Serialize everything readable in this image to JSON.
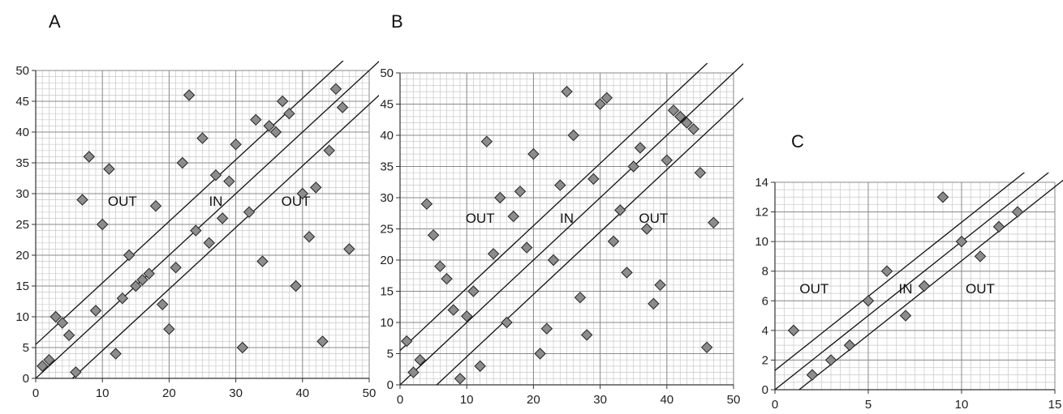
{
  "chart_data": [
    {
      "type": "scatter",
      "panel_label": "A",
      "xlim": [
        0,
        50
      ],
      "ylim": [
        0,
        50
      ],
      "x_ticks": [
        0,
        10,
        20,
        30,
        40,
        50
      ],
      "y_ticks": [
        0,
        5,
        10,
        15,
        20,
        25,
        30,
        35,
        40,
        45,
        50
      ],
      "grid": true,
      "marker": "diamond",
      "marker_color": "#8c8c8c",
      "region_labels": [
        {
          "text": "OUT",
          "x": 13,
          "y": 28
        },
        {
          "text": "IN",
          "x": 27,
          "y": 28
        },
        {
          "text": "OUT",
          "x": 39,
          "y": 28
        }
      ],
      "lines": [
        {
          "intercept": 5.5,
          "slope": 1.0
        },
        {
          "intercept": 0,
          "slope": 1.0
        },
        {
          "intercept": -5.5,
          "slope": 1.0
        }
      ],
      "points": [
        [
          1,
          2
        ],
        [
          2,
          3
        ],
        [
          3,
          10
        ],
        [
          4,
          9
        ],
        [
          5,
          7
        ],
        [
          6,
          1
        ],
        [
          7,
          29
        ],
        [
          8,
          36
        ],
        [
          9,
          11
        ],
        [
          10,
          25
        ],
        [
          11,
          34
        ],
        [
          12,
          4
        ],
        [
          13,
          13
        ],
        [
          14,
          20
        ],
        [
          15,
          15
        ],
        [
          16,
          16
        ],
        [
          17,
          17
        ],
        [
          18,
          28
        ],
        [
          19,
          12
        ],
        [
          20,
          8
        ],
        [
          21,
          18
        ],
        [
          22,
          35
        ],
        [
          23,
          46
        ],
        [
          24,
          24
        ],
        [
          25,
          39
        ],
        [
          26,
          22
        ],
        [
          27,
          33
        ],
        [
          28,
          26
        ],
        [
          29,
          32
        ],
        [
          30,
          38
        ],
        [
          31,
          5
        ],
        [
          32,
          27
        ],
        [
          33,
          42
        ],
        [
          34,
          19
        ],
        [
          35,
          41
        ],
        [
          36,
          40
        ],
        [
          37,
          45
        ],
        [
          38,
          43
        ],
        [
          39,
          15
        ],
        [
          40,
          30
        ],
        [
          41,
          23
        ],
        [
          42,
          31
        ],
        [
          43,
          6
        ],
        [
          44,
          37
        ],
        [
          45,
          47
        ],
        [
          46,
          44
        ],
        [
          47,
          21
        ]
      ]
    },
    {
      "type": "scatter",
      "panel_label": "B",
      "xlim": [
        0,
        50
      ],
      "ylim": [
        0,
        50
      ],
      "x_ticks": [
        0,
        10,
        20,
        30,
        40,
        50
      ],
      "y_ticks": [
        0,
        5,
        10,
        15,
        20,
        25,
        30,
        35,
        40,
        45,
        50
      ],
      "grid": true,
      "marker": "diamond",
      "marker_color": "#8c8c8c",
      "region_labels": [
        {
          "text": "OUT",
          "x": 12,
          "y": 26
        },
        {
          "text": "IN",
          "x": 25,
          "y": 26
        },
        {
          "text": "OUT",
          "x": 38,
          "y": 26
        }
      ],
      "lines": [
        {
          "intercept": 5.5,
          "slope": 1.0
        },
        {
          "intercept": 0,
          "slope": 1.0
        },
        {
          "intercept": -5.5,
          "slope": 1.0
        }
      ],
      "points": [
        [
          1,
          7
        ],
        [
          2,
          2
        ],
        [
          3,
          4
        ],
        [
          4,
          29
        ],
        [
          5,
          24
        ],
        [
          6,
          19
        ],
        [
          7,
          17
        ],
        [
          8,
          12
        ],
        [
          9,
          1
        ],
        [
          10,
          11
        ],
        [
          11,
          15
        ],
        [
          12,
          3
        ],
        [
          13,
          39
        ],
        [
          14,
          21
        ],
        [
          15,
          30
        ],
        [
          16,
          10
        ],
        [
          17,
          27
        ],
        [
          18,
          31
        ],
        [
          19,
          22
        ],
        [
          20,
          37
        ],
        [
          21,
          5
        ],
        [
          22,
          9
        ],
        [
          23,
          20
        ],
        [
          24,
          32
        ],
        [
          25,
          47
        ],
        [
          26,
          40
        ],
        [
          27,
          14
        ],
        [
          28,
          8
        ],
        [
          29,
          33
        ],
        [
          30,
          45
        ],
        [
          31,
          46
        ],
        [
          32,
          23
        ],
        [
          33,
          28
        ],
        [
          34,
          18
        ],
        [
          35,
          35
        ],
        [
          36,
          38
        ],
        [
          37,
          25
        ],
        [
          38,
          13
        ],
        [
          39,
          16
        ],
        [
          40,
          36
        ],
        [
          41,
          44
        ],
        [
          42,
          43
        ],
        [
          43,
          42
        ],
        [
          44,
          41
        ],
        [
          45,
          34
        ],
        [
          46,
          6
        ],
        [
          47,
          26
        ]
      ]
    },
    {
      "type": "scatter",
      "panel_label": "C",
      "xlim": [
        0,
        15
      ],
      "ylim": [
        0,
        14
      ],
      "x_ticks": [
        0,
        5,
        10,
        15
      ],
      "x_tick_labels": [
        "0",
        "5",
        "10",
        "15"
      ],
      "y_ticks": [
        0,
        2,
        4,
        6,
        8,
        10,
        12,
        14
      ],
      "grid": true,
      "marker": "diamond",
      "marker_color": "#8c8c8c",
      "region_labels": [
        {
          "text": "OUT",
          "x": 2.1,
          "y": 6.5
        },
        {
          "text": "IN",
          "x": 7.0,
          "y": 6.5
        },
        {
          "text": "OUT",
          "x": 11.0,
          "y": 6.5
        }
      ],
      "lines": [
        {
          "intercept": 1.3,
          "slope": 1.0
        },
        {
          "intercept": 0,
          "slope": 1.0
        },
        {
          "intercept": -1.3,
          "slope": 1.0
        }
      ],
      "points": [
        [
          1,
          4
        ],
        [
          2,
          1
        ],
        [
          3,
          2
        ],
        [
          4,
          3
        ],
        [
          5,
          6
        ],
        [
          6,
          8
        ],
        [
          7,
          5
        ],
        [
          8,
          7
        ],
        [
          9,
          13
        ],
        [
          10,
          10
        ],
        [
          11,
          9
        ],
        [
          12,
          11
        ],
        [
          13,
          12
        ]
      ]
    }
  ]
}
